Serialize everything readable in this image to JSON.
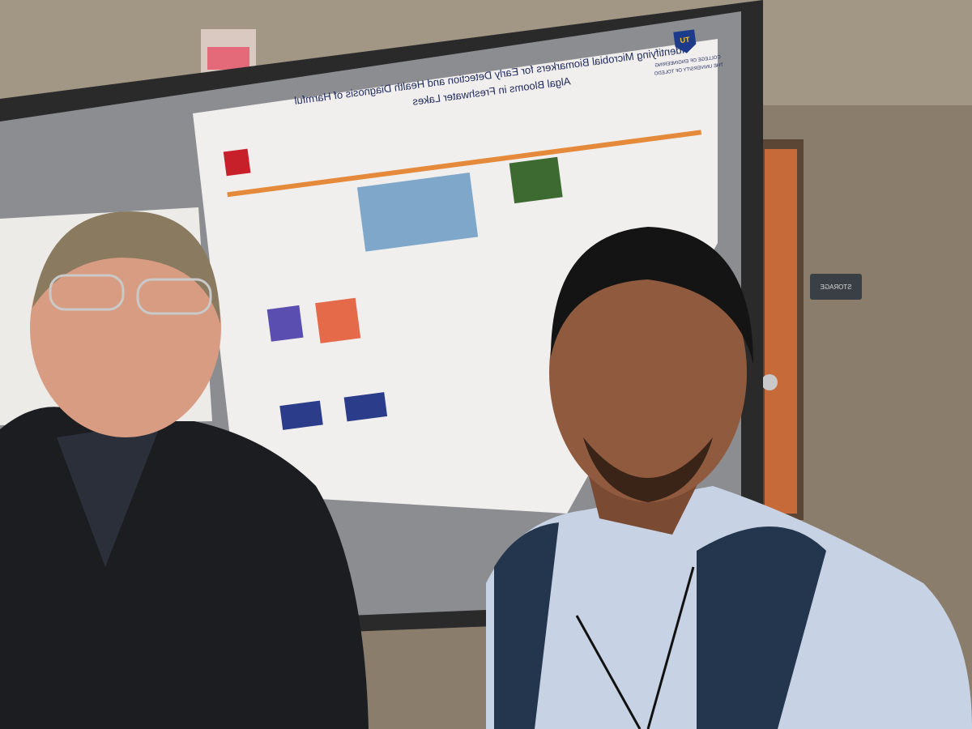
{
  "poster": {
    "title_lines": [
      "Identifying Microbial Biomarkers for Early Detection and Health Diagnosis of Harmful",
      "Algal Blooms in Freshwater Lakes"
    ],
    "logo": "UT",
    "college": "COLLEGE OF ENGINEERING",
    "institution": "THE UNIVERSITY OF TOLEDO"
  },
  "door_sign": "STORAGE"
}
